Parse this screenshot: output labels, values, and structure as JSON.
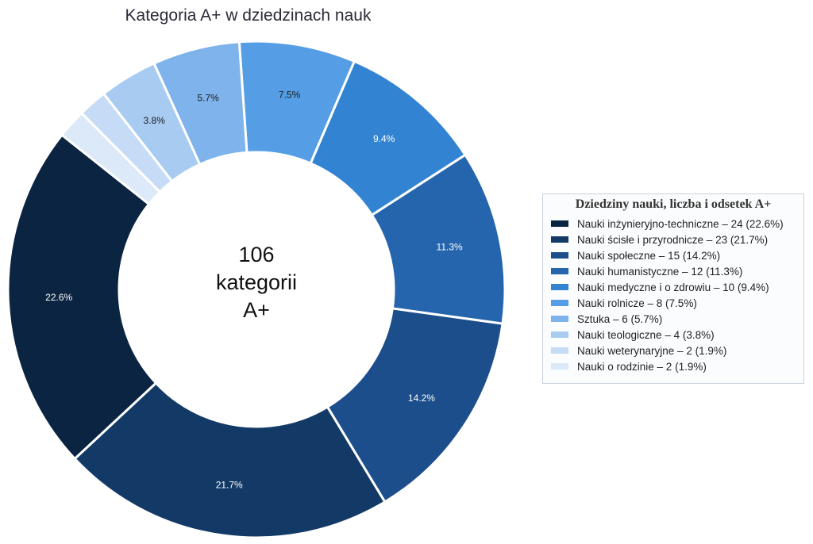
{
  "chart_data": {
    "type": "pie",
    "title": "Kategoria A+ w dziedzinach nauk",
    "center_text": [
      "106",
      "kategorii",
      "A+"
    ],
    "legend": {
      "title": "Dziedziny nauki, liczba i odsetek A+",
      "placement": "right"
    },
    "slices": [
      {
        "legend_label": "Nauki inżynieryjno-techniczne – 24 (22.6%)",
        "value": 24,
        "pct_label": "22.6%",
        "color": "#0b2442",
        "label_color": "#ffffff"
      },
      {
        "legend_label": "Nauki ścisłe i przyrodnicze – 23 (21.7%)",
        "value": 23,
        "pct_label": "21.7%",
        "color": "#133a67",
        "label_color": "#ffffff"
      },
      {
        "legend_label": "Nauki społeczne – 15 (14.2%)",
        "value": 15,
        "pct_label": "14.2%",
        "color": "#1c4e8b",
        "label_color": "#ffffff"
      },
      {
        "legend_label": "Nauki humanistyczne – 12 (11.3%)",
        "value": 12,
        "pct_label": "11.3%",
        "color": "#2565ad",
        "label_color": "#ffffff"
      },
      {
        "legend_label": "Nauki medyczne i o zdrowiu – 10 (9.4%)",
        "value": 10,
        "pct_label": "9.4%",
        "color": "#3284d3",
        "label_color": "#ffffff"
      },
      {
        "legend_label": "Nauki rolnicze – 8 (7.5%)",
        "value": 8,
        "pct_label": "7.5%",
        "color": "#559ee6",
        "label_color": "#1a1a1a"
      },
      {
        "legend_label": "Sztuka – 6 (5.7%)",
        "value": 6,
        "pct_label": "5.7%",
        "color": "#7fb3ec",
        "label_color": "#1a1a1a"
      },
      {
        "legend_label": "Nauki teologiczne – 4 (3.8%)",
        "value": 4,
        "pct_label": "3.8%",
        "color": "#a8cbf2",
        "label_color": "#1a1a1a"
      },
      {
        "legend_label": "Nauki weterynaryjne – 2 (1.9%)",
        "value": 2,
        "pct_label": "",
        "color": "#c6dcf6",
        "label_color": "#1a1a1a"
      },
      {
        "legend_label": "Nauki o rodzinie – 2 (1.9%)",
        "value": 2,
        "pct_label": "",
        "color": "#dce9f9",
        "label_color": "#1a1a1a"
      }
    ]
  }
}
